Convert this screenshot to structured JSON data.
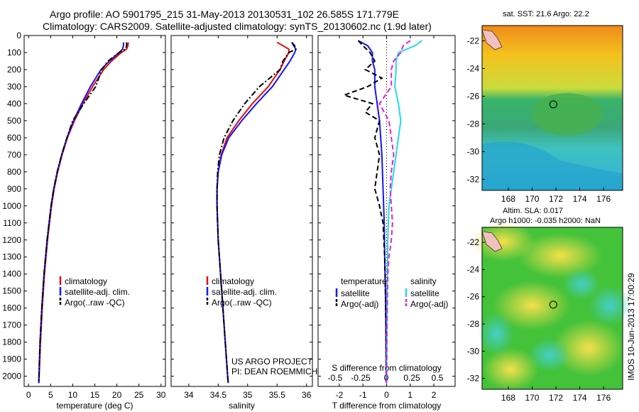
{
  "header": {
    "title_line1": "Argo profile: AO 5901795_215 31-May-2013 20130531_102 26.585S 171.779E",
    "title_line2": "Climatology: CARS2009. Satellite-adjusted climatology: synTS_20130602.nc (1.9d later)"
  },
  "colors": {
    "climatology": "#e01010",
    "satellite": "#1414ff",
    "argo": "#000000",
    "sat_salinity": "#22d8f0",
    "argo_salinity": "#e020e0"
  },
  "chart_data": [
    {
      "type": "line",
      "xlabel": "temperature (deg C)",
      "xlim": [
        -1,
        31
      ],
      "ylim": [
        2060,
        0
      ],
      "xticks": [
        0,
        5,
        10,
        15,
        20,
        25,
        30
      ],
      "yticks": [
        0,
        100,
        200,
        300,
        400,
        500,
        600,
        700,
        800,
        900,
        1000,
        1100,
        1200,
        1300,
        1400,
        1500,
        1600,
        1700,
        1800,
        1900,
        2000
      ],
      "legend": [
        "climatology",
        "satellite-adj. clim.",
        "Argo(..raw -QC)"
      ],
      "series": [
        {
          "name": "climatology",
          "style": "solid",
          "color": "#e01010",
          "depth": [
            40,
            60,
            80,
            100,
            150,
            200,
            300,
            400,
            500,
            600,
            700,
            800,
            900,
            1000,
            1200,
            1400,
            1600,
            1800,
            2000,
            2040
          ],
          "values": [
            22.6,
            22.5,
            22.2,
            21.0,
            18.8,
            17.0,
            14.5,
            12.3,
            10.4,
            8.8,
            7.6,
            6.6,
            5.8,
            5.2,
            4.3,
            3.6,
            3.1,
            2.7,
            2.4,
            2.35
          ]
        },
        {
          "name": "satellite-adj. clim.",
          "style": "solid",
          "color": "#1414ff",
          "depth": [
            40,
            60,
            80,
            100,
            150,
            200,
            300,
            400,
            500,
            600,
            700,
            800,
            900,
            1000,
            1200,
            1400,
            1600,
            1800,
            2000,
            2040
          ],
          "values": [
            21.5,
            21.5,
            21.3,
            20.5,
            18.3,
            16.4,
            14.0,
            12.0,
            10.2,
            8.7,
            7.5,
            6.5,
            5.7,
            5.1,
            4.2,
            3.5,
            3.0,
            2.6,
            2.35,
            2.3
          ]
        },
        {
          "name": "Argo(..raw -QC)",
          "style": "dashdot",
          "color": "#000000",
          "depth": [
            40,
            60,
            80,
            100,
            150,
            200,
            300,
            400,
            500,
            600,
            700,
            800,
            900,
            1000,
            1200,
            1400,
            1600,
            1800,
            2000,
            2040
          ],
          "values": [
            22.2,
            22.2,
            22.0,
            20.5,
            18.0,
            16.6,
            15.2,
            12.5,
            10.0,
            8.7,
            7.5,
            6.5,
            5.7,
            5.1,
            4.2,
            3.5,
            3.0,
            2.6,
            2.35,
            2.3
          ]
        }
      ]
    },
    {
      "type": "line",
      "xlabel": "salinity",
      "xlim": [
        33.7,
        36.1
      ],
      "ylim": [
        2060,
        0
      ],
      "xticks": [
        34,
        34.5,
        35,
        35.5,
        36
      ],
      "legend": [
        "climatology",
        "satellite-adj. clim.",
        "Argo(..raw -QC)"
      ],
      "annotation": [
        "US ARGO PROJECT",
        "PI: DEAN ROEMMICH"
      ],
      "series": [
        {
          "name": "climatology",
          "style": "solid",
          "color": "#e01010",
          "depth": [
            40,
            60,
            80,
            100,
            150,
            200,
            300,
            400,
            500,
            600,
            700,
            800,
            900,
            1000,
            1200,
            1400,
            1600,
            1800,
            2000,
            2040
          ],
          "values": [
            35.5,
            35.6,
            35.7,
            35.7,
            35.62,
            35.55,
            35.35,
            35.08,
            34.85,
            34.65,
            34.55,
            34.5,
            34.48,
            34.48,
            34.5,
            34.54,
            34.58,
            34.62,
            34.66,
            34.67
          ]
        },
        {
          "name": "satellite-adj. clim.",
          "style": "solid",
          "color": "#1414ff",
          "depth": [
            40,
            60,
            80,
            100,
            150,
            200,
            300,
            400,
            500,
            600,
            700,
            800,
            900,
            1000,
            1200,
            1400,
            1600,
            1800,
            2000,
            2040
          ],
          "values": [
            35.75,
            35.78,
            35.82,
            35.8,
            35.72,
            35.62,
            35.42,
            35.15,
            34.9,
            34.68,
            34.56,
            34.5,
            34.48,
            34.48,
            34.5,
            34.54,
            34.58,
            34.62,
            34.66,
            34.67
          ]
        },
        {
          "name": "Argo(..raw -QC)",
          "style": "dashdot",
          "color": "#000000",
          "depth": [
            40,
            60,
            80,
            100,
            150,
            200,
            300,
            400,
            500,
            600,
            700,
            800,
            900,
            1000,
            1200,
            1400,
            1600,
            1800,
            2000,
            2040
          ],
          "values": [
            35.75,
            35.8,
            35.82,
            35.7,
            35.6,
            35.55,
            35.2,
            34.95,
            34.75,
            34.6,
            34.52,
            34.49,
            34.48,
            34.48,
            34.5,
            34.54,
            34.58,
            34.62,
            34.66,
            34.67
          ]
        }
      ]
    },
    {
      "type": "line",
      "xlabel": "T difference from climatology",
      "xlabel_top": "S difference from climatology",
      "xlim": [
        -2.9,
        2.9
      ],
      "ylim": [
        2060,
        0
      ],
      "xticks": [
        -2,
        -1,
        0,
        1,
        2
      ],
      "xticks_top": [
        "-0.5",
        "-0.25",
        "0",
        "0.25",
        "0.5"
      ],
      "legend_temperature": [
        "temperature",
        "satellite",
        "Argo(-adj)"
      ],
      "legend_salinity": [
        "salinity",
        "satellite",
        "Argo(-adj)"
      ],
      "series": [
        {
          "name": "satellite",
          "group": "temperature",
          "style": "solid",
          "color": "#1414ff",
          "depth": [
            30,
            60,
            100,
            150,
            200,
            300,
            400,
            500,
            700,
            900,
            1100,
            1300,
            1500,
            1700,
            1900,
            2040
          ],
          "values": [
            -1.2,
            -0.8,
            -0.6,
            -0.6,
            -0.5,
            -0.5,
            -0.4,
            -0.3,
            -0.2,
            -0.15,
            -0.1,
            -0.08,
            -0.05,
            -0.03,
            -0.02,
            -0.01
          ]
        },
        {
          "name": "Argo(-adj)",
          "group": "temperature",
          "style": "dash",
          "color": "#000000",
          "depth": [
            30,
            60,
            100,
            150,
            200,
            250,
            300,
            350,
            400,
            450,
            500,
            600,
            700,
            800,
            900,
            1000,
            1100,
            1300,
            1500,
            1700,
            1900,
            2040
          ],
          "values": [
            -1.2,
            -1.0,
            -0.7,
            -0.5,
            -0.9,
            -0.2,
            -0.8,
            -1.8,
            -0.6,
            -0.9,
            -0.3,
            -0.5,
            -0.3,
            -0.4,
            -0.5,
            -0.3,
            -0.15,
            -0.08,
            -0.05,
            -0.03,
            -0.02,
            -0.01
          ]
        },
        {
          "name": "satellite",
          "group": "salinity",
          "style": "solid",
          "color": "#22d8f0",
          "depth": [
            30,
            60,
            100,
            150,
            200,
            300,
            400,
            500,
            600,
            700,
            800,
            900,
            1000,
            1200,
            1400,
            1600,
            1800,
            2000,
            2040
          ],
          "values": [
            1.5,
            1.2,
            0.5,
            0.4,
            0.4,
            0.35,
            0.5,
            0.6,
            0.5,
            0.4,
            0.3,
            0.2,
            0.1,
            0.05,
            0.03,
            0.02,
            0.01,
            0,
            0
          ]
        },
        {
          "name": "Argo(-adj)",
          "group": "salinity",
          "style": "dash",
          "color": "#e020e0",
          "depth": [
            30,
            60,
            100,
            150,
            200,
            300,
            400,
            500,
            600,
            700,
            800,
            900,
            1000,
            1100,
            1200,
            1300,
            1400,
            1600,
            1800,
            2000,
            2040
          ],
          "values": [
            1.0,
            0.7,
            0.6,
            0.3,
            0.2,
            0.2,
            -0.3,
            0.1,
            0.2,
            0.3,
            0.2,
            0.15,
            0.2,
            0.25,
            0.2,
            0.1,
            0.05,
            0.03,
            0.01,
            0,
            0
          ]
        }
      ]
    },
    {
      "type": "heatmap",
      "title": "sat. SST: 21.6 Argo: 22.2",
      "xticks": [
        168,
        170,
        172,
        174,
        176
      ],
      "yticks": [
        -22,
        -24,
        -26,
        -28,
        -30,
        -32
      ],
      "xlim": [
        165.8,
        177.6
      ],
      "ylim": [
        -32.8,
        -20.9
      ],
      "marker": {
        "lon": 171.779,
        "lat": -26.585
      }
    },
    {
      "type": "heatmap",
      "title_line1": "Altim. SLA: 0.017",
      "title_line2": "Argo h1000: -0.035 h2000: NaN",
      "xticks": [
        168,
        170,
        172,
        174,
        176
      ],
      "yticks": [
        -22,
        -24,
        -26,
        -28,
        -30,
        -32
      ],
      "xlim": [
        165.8,
        177.6
      ],
      "ylim": [
        -32.8,
        -20.9
      ],
      "marker": {
        "lon": 171.779,
        "lat": -26.585
      }
    }
  ],
  "footer": {
    "stamp": "IMOS 10-Jun-2013 17:00:29"
  }
}
